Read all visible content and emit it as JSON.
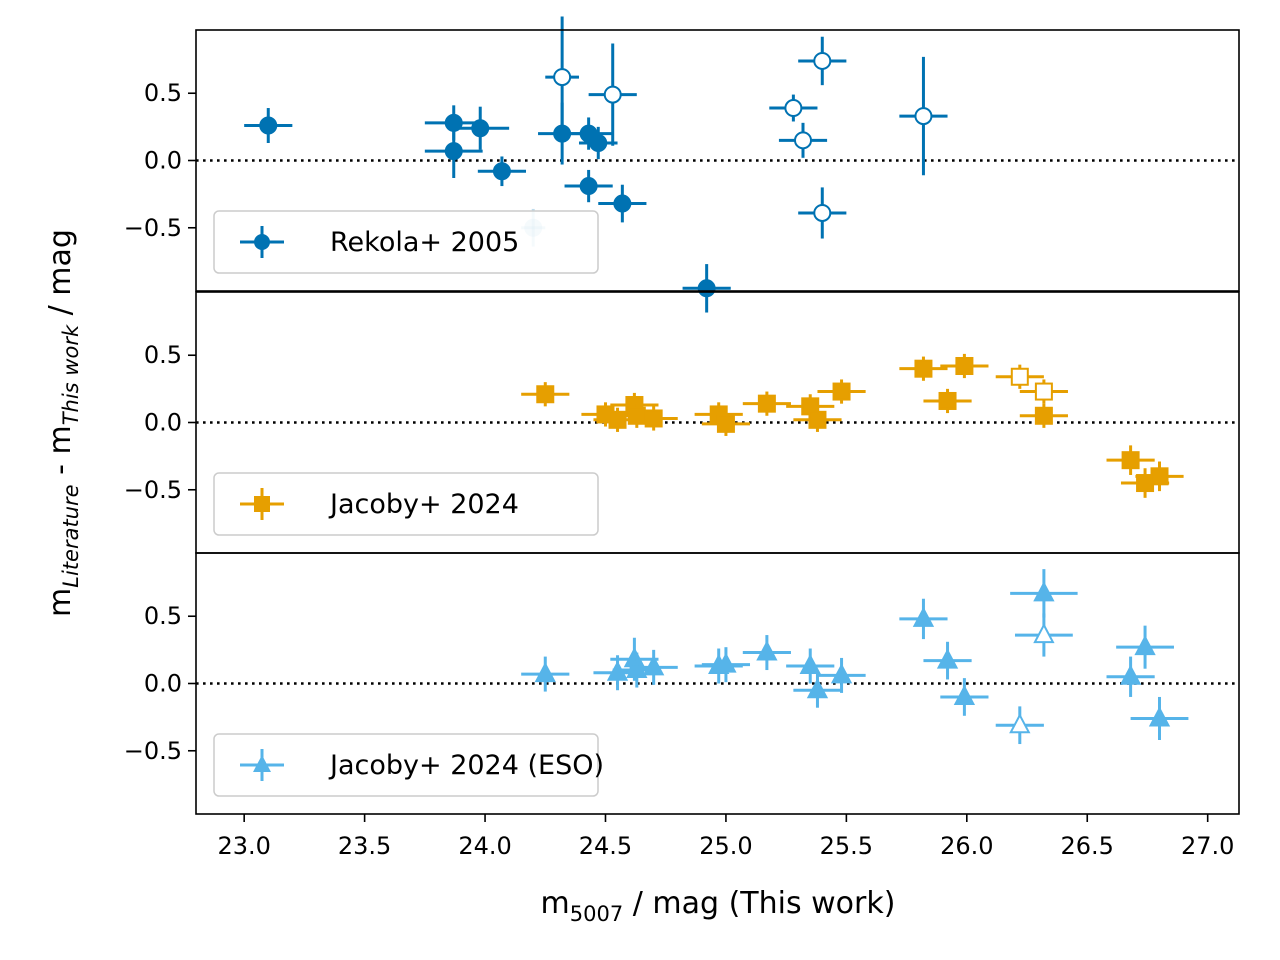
{
  "figure": {
    "ylabel": {
      "m": "m",
      "sub1": "Literature",
      "mid": " - m",
      "sub2": "This work",
      "tail": " / mag"
    },
    "xlabel": {
      "m": "m",
      "sub": "5007",
      "tail": " / mag (This work)"
    }
  },
  "chart_data": [
    {
      "type": "scatter",
      "panel": "top",
      "legend": "Rekola+ 2005",
      "legend_placement": "lower-left",
      "marker": "circle",
      "color": "#0072b2",
      "xlim": [
        22.8,
        27.13
      ],
      "ylim": [
        -0.97,
        0.97
      ],
      "xticks": [
        23.0,
        23.5,
        24.0,
        24.5,
        25.0,
        25.5,
        26.0,
        26.5,
        27.0
      ],
      "xtick_labels": [
        "23.0",
        "23.5",
        "24.0",
        "24.5",
        "25.0",
        "25.5",
        "26.0",
        "26.5",
        "27.0"
      ],
      "yticks": [
        -0.5,
        0.0,
        0.5
      ],
      "ytick_labels": [
        "−0.5",
        "0.0",
        "0.5"
      ],
      "reference_line": 0.0,
      "points": [
        {
          "x": 23.1,
          "y": 0.26,
          "xerr": 0.1,
          "yerr": 0.13,
          "filled": true
        },
        {
          "x": 23.87,
          "y": 0.28,
          "xerr": 0.12,
          "yerr": 0.13,
          "filled": true
        },
        {
          "x": 23.87,
          "y": 0.07,
          "xerr": 0.12,
          "yerr": 0.2,
          "filled": true
        },
        {
          "x": 23.98,
          "y": 0.24,
          "xerr": 0.12,
          "yerr": 0.16,
          "filled": true
        },
        {
          "x": 24.07,
          "y": -0.08,
          "xerr": 0.1,
          "yerr": 0.11,
          "filled": true
        },
        {
          "x": 24.2,
          "y": -0.5,
          "xerr": 0.05,
          "yerr": 0.14,
          "filled": true,
          "faded": true
        },
        {
          "x": 24.32,
          "y": 0.62,
          "xerr": 0.07,
          "yerr": 0.45,
          "filled": false
        },
        {
          "x": 24.32,
          "y": 0.2,
          "xerr": 0.1,
          "yerr": 0.23,
          "filled": true
        },
        {
          "x": 24.43,
          "y": 0.2,
          "xerr": 0.1,
          "yerr": 0.12,
          "filled": true
        },
        {
          "x": 24.43,
          "y": -0.19,
          "xerr": 0.1,
          "yerr": 0.12,
          "filled": true
        },
        {
          "x": 24.47,
          "y": 0.13,
          "xerr": 0.08,
          "yerr": 0.12,
          "filled": true
        },
        {
          "x": 24.53,
          "y": 0.49,
          "xerr": 0.1,
          "yerr": 0.38,
          "filled": false
        },
        {
          "x": 24.57,
          "y": -0.32,
          "xerr": 0.1,
          "yerr": 0.14,
          "filled": true
        },
        {
          "x": 24.92,
          "y": -0.95,
          "xerr": 0.1,
          "yerr": 0.18,
          "filled": true
        },
        {
          "x": 25.28,
          "y": 0.39,
          "xerr": 0.1,
          "yerr": 0.1,
          "filled": false
        },
        {
          "x": 25.32,
          "y": 0.15,
          "xerr": 0.1,
          "yerr": 0.13,
          "filled": false
        },
        {
          "x": 25.4,
          "y": 0.74,
          "xerr": 0.1,
          "yerr": 0.18,
          "filled": false
        },
        {
          "x": 25.4,
          "y": -0.39,
          "xerr": 0.1,
          "yerr": 0.19,
          "filled": false
        },
        {
          "x": 25.82,
          "y": 0.33,
          "xerr": 0.1,
          "yerr": 0.44,
          "filled": false
        }
      ]
    },
    {
      "type": "scatter",
      "panel": "middle",
      "legend": "Jacoby+ 2024",
      "legend_placement": "lower-left",
      "marker": "square",
      "color": "#e69f00",
      "xlim": [
        22.8,
        27.13
      ],
      "ylim": [
        -0.97,
        0.97
      ],
      "yticks": [
        -0.5,
        0.0,
        0.5
      ],
      "ytick_labels": [
        "−0.5",
        "0.0",
        "0.5"
      ],
      "reference_line": 0.0,
      "points": [
        {
          "x": 24.25,
          "y": 0.21,
          "xerr": 0.1,
          "yerr": 0.09,
          "filled": true
        },
        {
          "x": 24.5,
          "y": 0.06,
          "xerr": 0.1,
          "yerr": 0.09,
          "filled": true
        },
        {
          "x": 24.55,
          "y": 0.02,
          "xerr": 0.1,
          "yerr": 0.09,
          "filled": true
        },
        {
          "x": 24.62,
          "y": 0.13,
          "xerr": 0.1,
          "yerr": 0.09,
          "filled": true
        },
        {
          "x": 24.63,
          "y": 0.05,
          "xerr": 0.1,
          "yerr": 0.09,
          "filled": true
        },
        {
          "x": 24.7,
          "y": 0.03,
          "xerr": 0.1,
          "yerr": 0.09,
          "filled": true
        },
        {
          "x": 24.97,
          "y": 0.06,
          "xerr": 0.1,
          "yerr": 0.09,
          "filled": true
        },
        {
          "x": 25.0,
          "y": -0.01,
          "xerr": 0.1,
          "yerr": 0.09,
          "filled": true
        },
        {
          "x": 25.17,
          "y": 0.14,
          "xerr": 0.1,
          "yerr": 0.09,
          "filled": true
        },
        {
          "x": 25.35,
          "y": 0.12,
          "xerr": 0.1,
          "yerr": 0.09,
          "filled": true
        },
        {
          "x": 25.38,
          "y": 0.02,
          "xerr": 0.1,
          "yerr": 0.09,
          "filled": true
        },
        {
          "x": 25.48,
          "y": 0.23,
          "xerr": 0.1,
          "yerr": 0.09,
          "filled": true
        },
        {
          "x": 25.82,
          "y": 0.4,
          "xerr": 0.1,
          "yerr": 0.09,
          "filled": true
        },
        {
          "x": 25.92,
          "y": 0.16,
          "xerr": 0.1,
          "yerr": 0.09,
          "filled": true
        },
        {
          "x": 25.99,
          "y": 0.42,
          "xerr": 0.1,
          "yerr": 0.09,
          "filled": true
        },
        {
          "x": 26.22,
          "y": 0.34,
          "xerr": 0.1,
          "yerr": 0.09,
          "filled": false
        },
        {
          "x": 26.32,
          "y": 0.23,
          "xerr": 0.1,
          "yerr": 0.09,
          "filled": false
        },
        {
          "x": 26.32,
          "y": 0.05,
          "xerr": 0.1,
          "yerr": 0.09,
          "filled": true
        },
        {
          "x": 26.68,
          "y": -0.28,
          "xerr": 0.1,
          "yerr": 0.11,
          "filled": true
        },
        {
          "x": 26.74,
          "y": -0.45,
          "xerr": 0.1,
          "yerr": 0.11,
          "filled": true
        },
        {
          "x": 26.8,
          "y": -0.4,
          "xerr": 0.1,
          "yerr": 0.11,
          "filled": true
        }
      ]
    },
    {
      "type": "scatter",
      "panel": "bottom",
      "legend": "Jacoby+ 2024 (ESO)",
      "legend_placement": "lower-left",
      "marker": "triangle",
      "color": "#56b4e9",
      "xlim": [
        22.8,
        27.13
      ],
      "ylim": [
        -0.97,
        0.97
      ],
      "yticks": [
        -0.5,
        0.0,
        0.5
      ],
      "ytick_labels": [
        "−0.5",
        "0.0",
        "0.5"
      ],
      "reference_line": 0.0,
      "points": [
        {
          "x": 24.25,
          "y": 0.07,
          "xerr": 0.1,
          "yerr": 0.13,
          "filled": true
        },
        {
          "x": 24.55,
          "y": 0.08,
          "xerr": 0.1,
          "yerr": 0.13,
          "filled": true
        },
        {
          "x": 24.62,
          "y": 0.18,
          "xerr": 0.1,
          "yerr": 0.16,
          "filled": true
        },
        {
          "x": 24.63,
          "y": 0.1,
          "xerr": 0.1,
          "yerr": 0.13,
          "filled": true
        },
        {
          "x": 24.7,
          "y": 0.12,
          "xerr": 0.1,
          "yerr": 0.13,
          "filled": true
        },
        {
          "x": 24.97,
          "y": 0.13,
          "xerr": 0.1,
          "yerr": 0.13,
          "filled": true
        },
        {
          "x": 25.0,
          "y": 0.14,
          "xerr": 0.1,
          "yerr": 0.13,
          "filled": true
        },
        {
          "x": 25.17,
          "y": 0.23,
          "xerr": 0.1,
          "yerr": 0.13,
          "filled": true
        },
        {
          "x": 25.35,
          "y": 0.13,
          "xerr": 0.1,
          "yerr": 0.13,
          "filled": true
        },
        {
          "x": 25.38,
          "y": -0.05,
          "xerr": 0.1,
          "yerr": 0.13,
          "filled": true
        },
        {
          "x": 25.48,
          "y": 0.06,
          "xerr": 0.1,
          "yerr": 0.13,
          "filled": true
        },
        {
          "x": 25.82,
          "y": 0.48,
          "xerr": 0.1,
          "yerr": 0.15,
          "filled": true
        },
        {
          "x": 25.92,
          "y": 0.17,
          "xerr": 0.1,
          "yerr": 0.14,
          "filled": true
        },
        {
          "x": 25.99,
          "y": -0.1,
          "xerr": 0.1,
          "yerr": 0.14,
          "filled": true
        },
        {
          "x": 26.22,
          "y": -0.31,
          "xerr": 0.1,
          "yerr": 0.14,
          "filled": false
        },
        {
          "x": 26.32,
          "y": 0.67,
          "xerr": 0.14,
          "yerr": 0.18,
          "filled": true
        },
        {
          "x": 26.32,
          "y": 0.36,
          "xerr": 0.12,
          "yerr": 0.16,
          "filled": false
        },
        {
          "x": 26.68,
          "y": 0.05,
          "xerr": 0.1,
          "yerr": 0.15,
          "filled": true
        },
        {
          "x": 26.74,
          "y": 0.27,
          "xerr": 0.12,
          "yerr": 0.16,
          "filled": true
        },
        {
          "x": 26.8,
          "y": -0.26,
          "xerr": 0.12,
          "yerr": 0.16,
          "filled": true
        }
      ]
    }
  ]
}
